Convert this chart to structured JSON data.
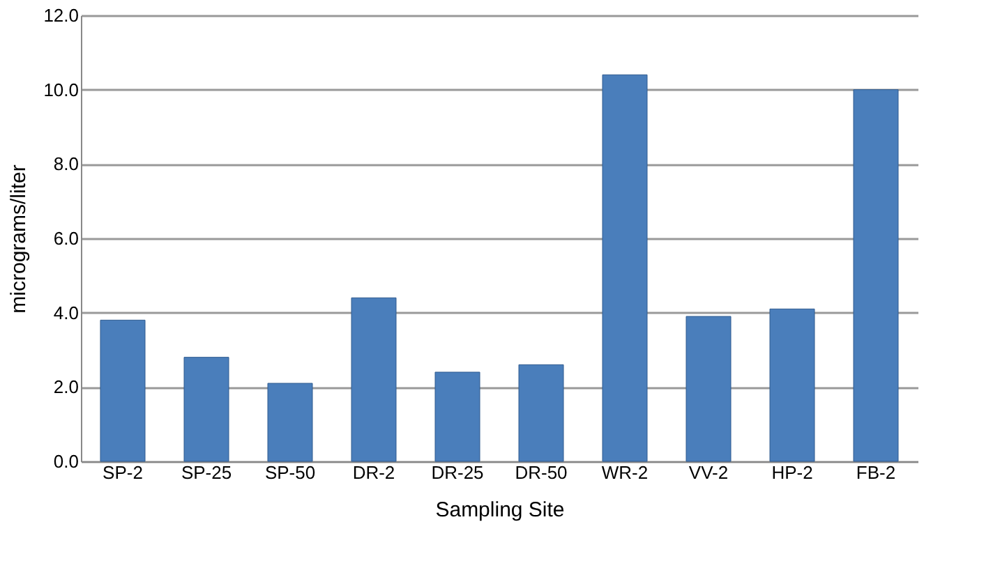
{
  "chart_data": {
    "type": "bar",
    "xlabel": "Sampling Site",
    "ylabel": "micrograms/liter",
    "categories": [
      "SP-2",
      "SP-25",
      "SP-50",
      "DR-2",
      "DR-25",
      "DR-50",
      "WR-2",
      "VV-2",
      "HP-2",
      "FB-2"
    ],
    "values": [
      3.8,
      2.8,
      2.1,
      4.4,
      2.4,
      2.6,
      10.4,
      3.9,
      4.1,
      10.0
    ],
    "color": "#4a7ebb",
    "ylim": [
      0,
      12
    ],
    "yticks": [
      {
        "value": 0,
        "label": "0.0"
      },
      {
        "value": 2,
        "label": "2.0"
      },
      {
        "value": 4,
        "label": "4.0"
      },
      {
        "value": 6,
        "label": "6.0"
      },
      {
        "value": 8,
        "label": "8.0"
      },
      {
        "value": 10,
        "label": "10.0"
      },
      {
        "value": 12,
        "label": "12.0"
      }
    ],
    "grid": "y"
  }
}
